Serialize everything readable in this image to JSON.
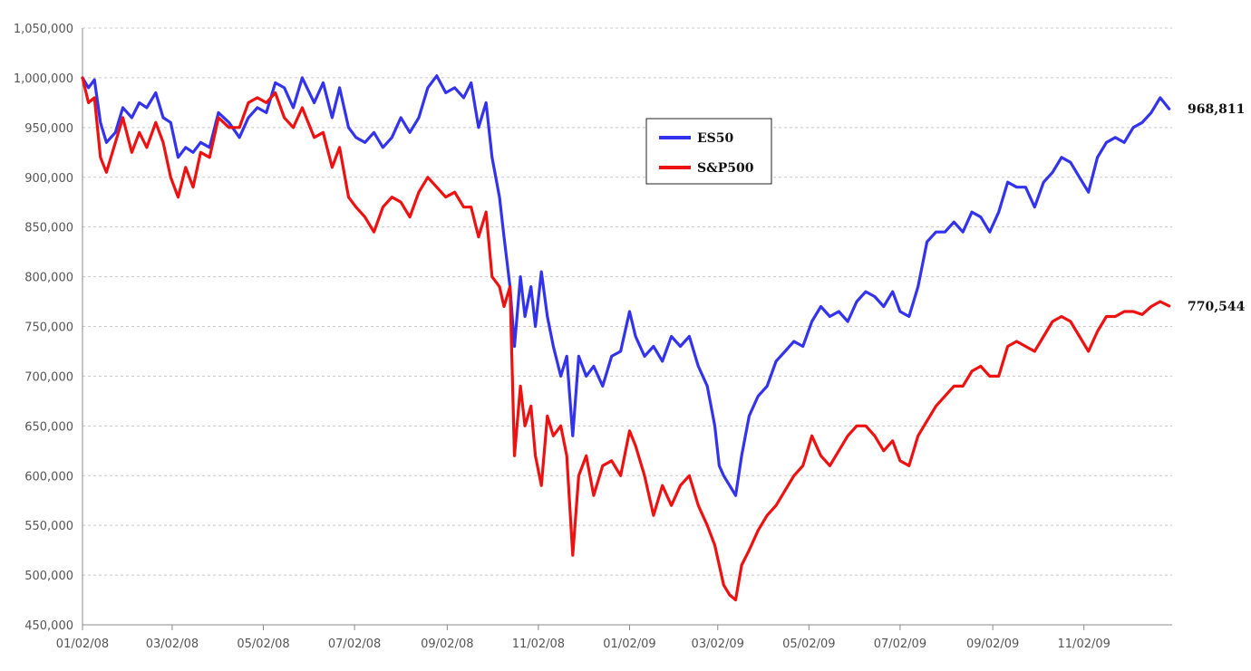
{
  "chart_data": {
    "type": "line",
    "title": "",
    "xlabel": "",
    "ylabel": "",
    "ylim": [
      450000,
      1050000
    ],
    "xlim": [
      "2008-01-02",
      "2009-12-31"
    ],
    "y_ticks": [
      "450,000",
      "500,000",
      "550,000",
      "600,000",
      "650,000",
      "700,000",
      "750,000",
      "800,000",
      "850,000",
      "900,000",
      "950,000",
      "1,000,000",
      "1,050,000"
    ],
    "x_ticks": [
      {
        "date": "2008-01-02",
        "label": "01/02/08"
      },
      {
        "date": "2008-03-02",
        "label": "03/02/08"
      },
      {
        "date": "2008-05-02",
        "label": "05/02/08"
      },
      {
        "date": "2008-07-02",
        "label": "07/02/08"
      },
      {
        "date": "2008-09-02",
        "label": "09/02/08"
      },
      {
        "date": "2008-11-02",
        "label": "11/02/08"
      },
      {
        "date": "2009-01-02",
        "label": "01/02/09"
      },
      {
        "date": "2009-03-02",
        "label": "03/02/09"
      },
      {
        "date": "2009-05-02",
        "label": "05/02/09"
      },
      {
        "date": "2009-07-02",
        "label": "07/02/09"
      },
      {
        "date": "2009-09-02",
        "label": "09/02/09"
      },
      {
        "date": "2009-11-02",
        "label": "11/02/09"
      }
    ],
    "grid": true,
    "legend": {
      "position": "center-top"
    },
    "series": [
      {
        "name": "ES50",
        "color": "#3333ee",
        "end_label": "968,811",
        "x": [
          "2008-01-02",
          "2008-01-06",
          "2008-01-10",
          "2008-01-14",
          "2008-01-18",
          "2008-01-24",
          "2008-01-29",
          "2008-02-04",
          "2008-02-09",
          "2008-02-14",
          "2008-02-20",
          "2008-02-25",
          "2008-03-01",
          "2008-03-06",
          "2008-03-11",
          "2008-03-16",
          "2008-03-21",
          "2008-03-27",
          "2008-04-02",
          "2008-04-09",
          "2008-04-16",
          "2008-04-22",
          "2008-04-28",
          "2008-05-04",
          "2008-05-10",
          "2008-05-16",
          "2008-05-22",
          "2008-05-28",
          "2008-06-05",
          "2008-06-11",
          "2008-06-17",
          "2008-06-22",
          "2008-06-28",
          "2008-07-03",
          "2008-07-09",
          "2008-07-15",
          "2008-07-21",
          "2008-07-27",
          "2008-08-02",
          "2008-08-08",
          "2008-08-14",
          "2008-08-20",
          "2008-08-26",
          "2008-09-01",
          "2008-09-07",
          "2008-09-13",
          "2008-09-18",
          "2008-09-23",
          "2008-09-28",
          "2008-10-02",
          "2008-10-07",
          "2008-10-10",
          "2008-10-14",
          "2008-10-17",
          "2008-10-21",
          "2008-10-24",
          "2008-10-28",
          "2008-10-31",
          "2008-11-04",
          "2008-11-08",
          "2008-11-12",
          "2008-11-17",
          "2008-11-21",
          "2008-11-25",
          "2008-11-29",
          "2008-12-04",
          "2008-12-09",
          "2008-12-15",
          "2008-12-21",
          "2008-12-27",
          "2009-01-02",
          "2009-01-06",
          "2009-01-12",
          "2009-01-18",
          "2009-01-24",
          "2009-01-30",
          "2009-02-05",
          "2009-02-11",
          "2009-02-17",
          "2009-02-23",
          "2009-02-28",
          "2009-03-03",
          "2009-03-06",
          "2009-03-10",
          "2009-03-14",
          "2009-03-18",
          "2009-03-23",
          "2009-03-29",
          "2009-04-04",
          "2009-04-10",
          "2009-04-16",
          "2009-04-22",
          "2009-04-28",
          "2009-05-04",
          "2009-05-10",
          "2009-05-16",
          "2009-05-22",
          "2009-05-28",
          "2009-06-03",
          "2009-06-09",
          "2009-06-15",
          "2009-06-21",
          "2009-06-27",
          "2009-07-02",
          "2009-07-08",
          "2009-07-14",
          "2009-07-20",
          "2009-07-26",
          "2009-08-01",
          "2009-08-07",
          "2009-08-13",
          "2009-08-19",
          "2009-08-25",
          "2009-08-31",
          "2009-09-06",
          "2009-09-12",
          "2009-09-18",
          "2009-09-24",
          "2009-09-30",
          "2009-10-06",
          "2009-10-12",
          "2009-10-18",
          "2009-10-24",
          "2009-10-30",
          "2009-11-05",
          "2009-11-11",
          "2009-11-17",
          "2009-11-23",
          "2009-11-29",
          "2009-12-05",
          "2009-12-11",
          "2009-12-17",
          "2009-12-23",
          "2009-12-29"
        ],
        "y": [
          1000000,
          990000,
          998000,
          955000,
          935000,
          945000,
          970000,
          960000,
          975000,
          970000,
          985000,
          960000,
          955000,
          920000,
          930000,
          925000,
          935000,
          930000,
          965000,
          955000,
          940000,
          960000,
          970000,
          965000,
          995000,
          990000,
          970000,
          1000000,
          975000,
          995000,
          960000,
          990000,
          950000,
          940000,
          935000,
          945000,
          930000,
          940000,
          960000,
          945000,
          960000,
          990000,
          1002000,
          985000,
          990000,
          980000,
          995000,
          950000,
          975000,
          920000,
          880000,
          840000,
          790000,
          730000,
          800000,
          760000,
          790000,
          750000,
          805000,
          760000,
          730000,
          700000,
          720000,
          640000,
          720000,
          700000,
          710000,
          690000,
          720000,
          725000,
          765000,
          740000,
          720000,
          730000,
          715000,
          740000,
          730000,
          740000,
          710000,
          690000,
          650000,
          610000,
          600000,
          590000,
          580000,
          620000,
          660000,
          680000,
          690000,
          715000,
          725000,
          735000,
          730000,
          755000,
          770000,
          760000,
          765000,
          755000,
          775000,
          785000,
          780000,
          770000,
          785000,
          765000,
          760000,
          790000,
          835000,
          845000,
          845000,
          855000,
          845000,
          865000,
          860000,
          845000,
          865000,
          895000,
          890000,
          890000,
          870000,
          895000,
          905000,
          920000,
          915000,
          900000,
          885000,
          920000,
          935000,
          940000,
          935000,
          950000,
          955000,
          965000,
          980000,
          968811
        ]
      },
      {
        "name": "S&P500",
        "color": "#ee1111",
        "end_label": "770,544",
        "x": [
          "2008-01-02",
          "2008-01-06",
          "2008-01-10",
          "2008-01-14",
          "2008-01-18",
          "2008-01-24",
          "2008-01-29",
          "2008-02-04",
          "2008-02-09",
          "2008-02-14",
          "2008-02-20",
          "2008-02-25",
          "2008-03-01",
          "2008-03-06",
          "2008-03-11",
          "2008-03-16",
          "2008-03-21",
          "2008-03-27",
          "2008-04-02",
          "2008-04-09",
          "2008-04-16",
          "2008-04-22",
          "2008-04-28",
          "2008-05-04",
          "2008-05-10",
          "2008-05-16",
          "2008-05-22",
          "2008-05-28",
          "2008-06-05",
          "2008-06-11",
          "2008-06-17",
          "2008-06-22",
          "2008-06-28",
          "2008-07-03",
          "2008-07-09",
          "2008-07-15",
          "2008-07-21",
          "2008-07-27",
          "2008-08-02",
          "2008-08-08",
          "2008-08-14",
          "2008-08-20",
          "2008-08-26",
          "2008-09-01",
          "2008-09-07",
          "2008-09-13",
          "2008-09-18",
          "2008-09-23",
          "2008-09-28",
          "2008-10-02",
          "2008-10-07",
          "2008-10-10",
          "2008-10-14",
          "2008-10-17",
          "2008-10-21",
          "2008-10-24",
          "2008-10-28",
          "2008-10-31",
          "2008-11-04",
          "2008-11-08",
          "2008-11-12",
          "2008-11-17",
          "2008-11-21",
          "2008-11-25",
          "2008-11-29",
          "2008-12-04",
          "2008-12-09",
          "2008-12-15",
          "2008-12-21",
          "2008-12-27",
          "2009-01-02",
          "2009-01-06",
          "2009-01-12",
          "2009-01-18",
          "2009-01-24",
          "2009-01-30",
          "2009-02-05",
          "2009-02-11",
          "2009-02-17",
          "2009-02-23",
          "2009-02-28",
          "2009-03-03",
          "2009-03-06",
          "2009-03-10",
          "2009-03-14",
          "2009-03-18",
          "2009-03-23",
          "2009-03-29",
          "2009-04-04",
          "2009-04-10",
          "2009-04-16",
          "2009-04-22",
          "2009-04-28",
          "2009-05-04",
          "2009-05-10",
          "2009-05-16",
          "2009-05-22",
          "2009-05-28",
          "2009-06-03",
          "2009-06-09",
          "2009-06-15",
          "2009-06-21",
          "2009-06-27",
          "2009-07-02",
          "2009-07-08",
          "2009-07-14",
          "2009-07-20",
          "2009-07-26",
          "2009-08-01",
          "2009-08-07",
          "2009-08-13",
          "2009-08-19",
          "2009-08-25",
          "2009-08-31",
          "2009-09-06",
          "2009-09-12",
          "2009-09-18",
          "2009-09-24",
          "2009-09-30",
          "2009-10-06",
          "2009-10-12",
          "2009-10-18",
          "2009-10-24",
          "2009-10-30",
          "2009-11-05",
          "2009-11-11",
          "2009-11-17",
          "2009-11-23",
          "2009-11-29",
          "2009-12-05",
          "2009-12-11",
          "2009-12-17",
          "2009-12-23",
          "2009-12-29"
        ],
        "y": [
          1000000,
          975000,
          980000,
          920000,
          905000,
          935000,
          960000,
          925000,
          945000,
          930000,
          955000,
          935000,
          900000,
          880000,
          910000,
          890000,
          925000,
          920000,
          960000,
          950000,
          950000,
          975000,
          980000,
          975000,
          985000,
          960000,
          950000,
          970000,
          940000,
          945000,
          910000,
          930000,
          880000,
          870000,
          860000,
          845000,
          870000,
          880000,
          875000,
          860000,
          885000,
          900000,
          890000,
          880000,
          885000,
          870000,
          870000,
          840000,
          865000,
          800000,
          790000,
          770000,
          790000,
          620000,
          690000,
          650000,
          670000,
          620000,
          590000,
          660000,
          640000,
          650000,
          620000,
          520000,
          600000,
          620000,
          580000,
          610000,
          615000,
          600000,
          645000,
          630000,
          600000,
          560000,
          590000,
          570000,
          590000,
          600000,
          570000,
          550000,
          530000,
          510000,
          490000,
          480000,
          475000,
          510000,
          525000,
          545000,
          560000,
          570000,
          585000,
          600000,
          610000,
          640000,
          620000,
          610000,
          625000,
          640000,
          650000,
          650000,
          640000,
          625000,
          635000,
          615000,
          610000,
          640000,
          655000,
          670000,
          680000,
          690000,
          690000,
          705000,
          710000,
          700000,
          700000,
          730000,
          735000,
          730000,
          725000,
          740000,
          755000,
          760000,
          755000,
          740000,
          725000,
          745000,
          760000,
          760000,
          765000,
          765000,
          762000,
          770000,
          775000,
          770544
        ]
      }
    ]
  }
}
